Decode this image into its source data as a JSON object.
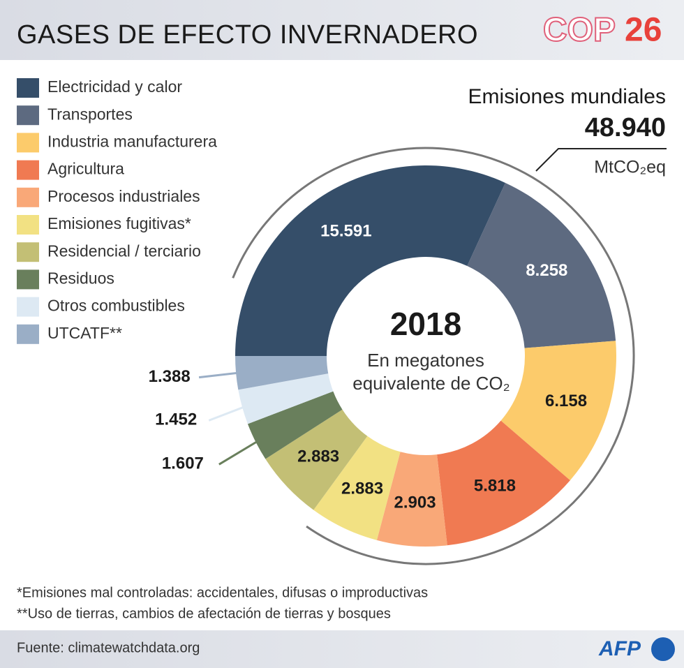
{
  "header": {
    "title": "GASES DE EFECTO INVERNADERO",
    "logo": [
      "COP",
      "26"
    ]
  },
  "chart_data": {
    "type": "donut",
    "categories": [
      "Electricidad y calor",
      "Transportes",
      "Industria manufacturera",
      "Agricultura",
      "Procesos industriales",
      "Emisiones fugitivas*",
      "Residencial / terciario",
      "Residuos",
      "Otros combustibles",
      "UTCATF**"
    ],
    "values": [
      15591,
      8258,
      6158,
      5818,
      2903,
      2883,
      2883,
      1607,
      1452,
      1388
    ],
    "value_labels": [
      "15.591",
      "8.258",
      "6.158",
      "5.818",
      "2.903",
      "2.883",
      "2.883",
      "1.607",
      "1.452",
      "1.388"
    ],
    "colors": [
      "#354e69",
      "#5d6a80",
      "#fccb6b",
      "#f07a52",
      "#f9a878",
      "#f2e183",
      "#c3bf75",
      "#697f5c",
      "#dde9f3",
      "#9aaec6"
    ],
    "center_title": "2018",
    "center_subtitle": [
      "En megatones",
      "equivalente de CO₂"
    ],
    "total_title": "Emisiones mundiales",
    "total": {
      "value": 48940,
      "label": "48.940"
    },
    "total_unit": "MtCO₂eq"
  },
  "notes": [
    "*Emisiones mal controladas: accidentales, difusas o improductivas",
    "**Uso de tierras, cambios de afectación de tierras y bosques"
  ],
  "footer": {
    "source": "Fuente: climatewatchdata.org",
    "logo": "AFP"
  }
}
